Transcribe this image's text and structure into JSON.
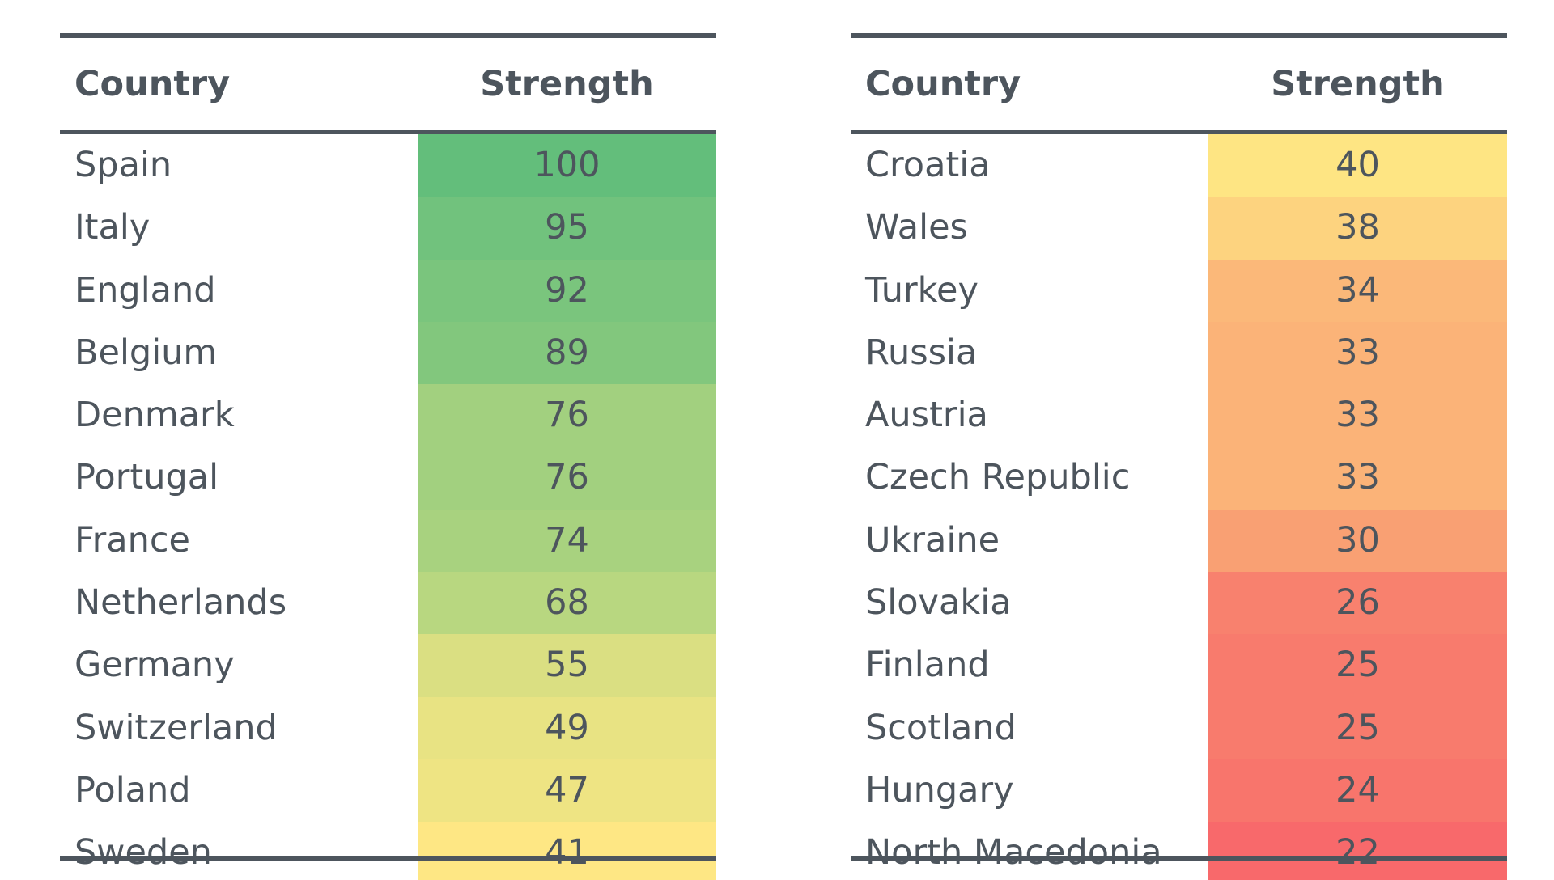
{
  "chart_data": {
    "type": "table",
    "tables": [
      {
        "headers": [
          "Country",
          "Strength"
        ],
        "rows": [
          {
            "country": "Spain",
            "strength": 100,
            "color": "#63be7b"
          },
          {
            "country": "Italy",
            "strength": 95,
            "color": "#71c27d"
          },
          {
            "country": "England",
            "strength": 92,
            "color": "#7ac57d"
          },
          {
            "country": "Belgium",
            "strength": 89,
            "color": "#82c77d"
          },
          {
            "country": "Denmark",
            "strength": 76,
            "color": "#a2d07f"
          },
          {
            "country": "Portugal",
            "strength": 76,
            "color": "#a2d07f"
          },
          {
            "country": "France",
            "strength": 74,
            "color": "#a8d27f"
          },
          {
            "country": "Netherlands",
            "strength": 68,
            "color": "#b8d780"
          },
          {
            "country": "Germany",
            "strength": 55,
            "color": "#dadf82"
          },
          {
            "country": "Switzerland",
            "strength": 49,
            "color": "#e8e383"
          },
          {
            "country": "Poland",
            "strength": 47,
            "color": "#eee483"
          },
          {
            "country": "Sweden",
            "strength": 41,
            "color": "#fee784"
          }
        ]
      },
      {
        "headers": [
          "Country",
          "Strength"
        ],
        "rows": [
          {
            "country": "Croatia",
            "strength": 40,
            "color": "#fee583"
          },
          {
            "country": "Wales",
            "strength": 38,
            "color": "#fdd37f"
          },
          {
            "country": "Turkey",
            "strength": 34,
            "color": "#fbb879"
          },
          {
            "country": "Russia",
            "strength": 33,
            "color": "#fbb378"
          },
          {
            "country": "Austria",
            "strength": 33,
            "color": "#fbb378"
          },
          {
            "country": "Czech Republic",
            "strength": 33,
            "color": "#fbb378"
          },
          {
            "country": "Ukraine",
            "strength": 30,
            "color": "#f9a073"
          },
          {
            "country": "Slovakia",
            "strength": 26,
            "color": "#f8816e"
          },
          {
            "country": "Finland",
            "strength": 25,
            "color": "#f87b6d"
          },
          {
            "country": "Scotland",
            "strength": 25,
            "color": "#f87b6d"
          },
          {
            "country": "Hungary",
            "strength": 24,
            "color": "#f8756c"
          },
          {
            "country": "North Macedonia",
            "strength": 22,
            "color": "#f8696b"
          }
        ]
      }
    ]
  }
}
